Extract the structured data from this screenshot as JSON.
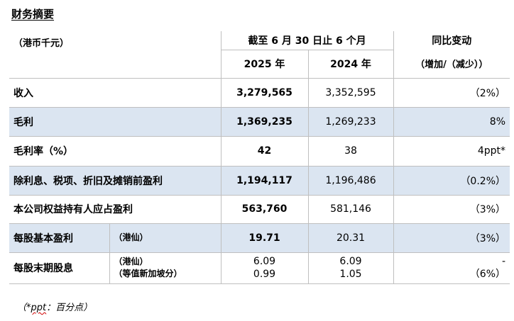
{
  "title": "财务摘要",
  "header": {
    "unit": "（港币千元）",
    "period": "截至 6 月 30 日止 6 个月",
    "change_label": "同比变动",
    "change_sub": "（增加/（减少））",
    "year_2025": "2025 年",
    "year_2024": "2024 年"
  },
  "rows": [
    {
      "label": "收入",
      "v2025": "3,279,565",
      "v2024": "3,352,595",
      "change": "（2%）"
    },
    {
      "label": "毛利",
      "v2025": "1,369,235",
      "v2024": "1,269,233",
      "change": "8%"
    },
    {
      "label": "毛利率（%）",
      "v2025": "42",
      "v2024": "38",
      "change": "4ppt*"
    },
    {
      "label": "除利息、税项、折旧及摊销前盈利",
      "v2025": "1,194,117",
      "v2024": "1,196,486",
      "change": "（0.2%）"
    },
    {
      "label": "本公司权益持有人应占盈利",
      "v2025": "563,760",
      "v2024": "581,146",
      "change": "（3%）"
    }
  ],
  "eps": {
    "label": "每股基本盈利",
    "unit": "（港仙）",
    "v2025": "19.71",
    "v2024": "20.31",
    "change": "（3%）"
  },
  "dps": {
    "label": "每股末期股息",
    "unit1": "（港仙）",
    "unit2": "（等值新加坡分）",
    "v2025_1": "6.09",
    "v2025_2": "0.99",
    "v2024_1": "6.09",
    "v2024_2": "1.05",
    "change_1": "-",
    "change_2": "（6%）"
  },
  "footnote": {
    "prefix": "（",
    "star": "*",
    "abbr": "ppt",
    "rest": "：百分点）"
  }
}
